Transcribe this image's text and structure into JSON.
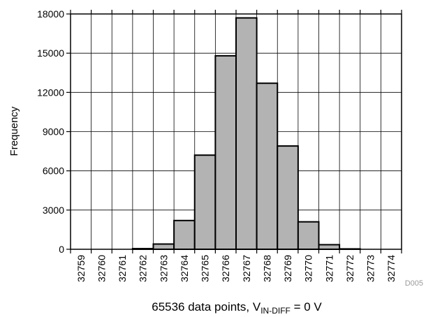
{
  "chart_data": {
    "type": "bar",
    "categories": [
      "32759",
      "32760",
      "32761",
      "32762",
      "32763",
      "32764",
      "32765",
      "32766",
      "32767",
      "32768",
      "32769",
      "32770",
      "32771",
      "32772",
      "32773",
      "32774"
    ],
    "values": [
      0,
      0,
      0,
      50,
      400,
      2200,
      7200,
      14800,
      17700,
      12700,
      7900,
      2100,
      350,
      30,
      0,
      0
    ],
    "ylabel": "Frequency",
    "xlabel_main": "65536 data points, V",
    "xlabel_sub": "IN-DIFF",
    "xlabel_tail": " = 0 V",
    "ylim": [
      0,
      18000
    ],
    "yticks": [
      0,
      3000,
      6000,
      9000,
      12000,
      15000,
      18000
    ],
    "grid": true,
    "bar_color": "#b3b3b3",
    "code": "D005"
  }
}
